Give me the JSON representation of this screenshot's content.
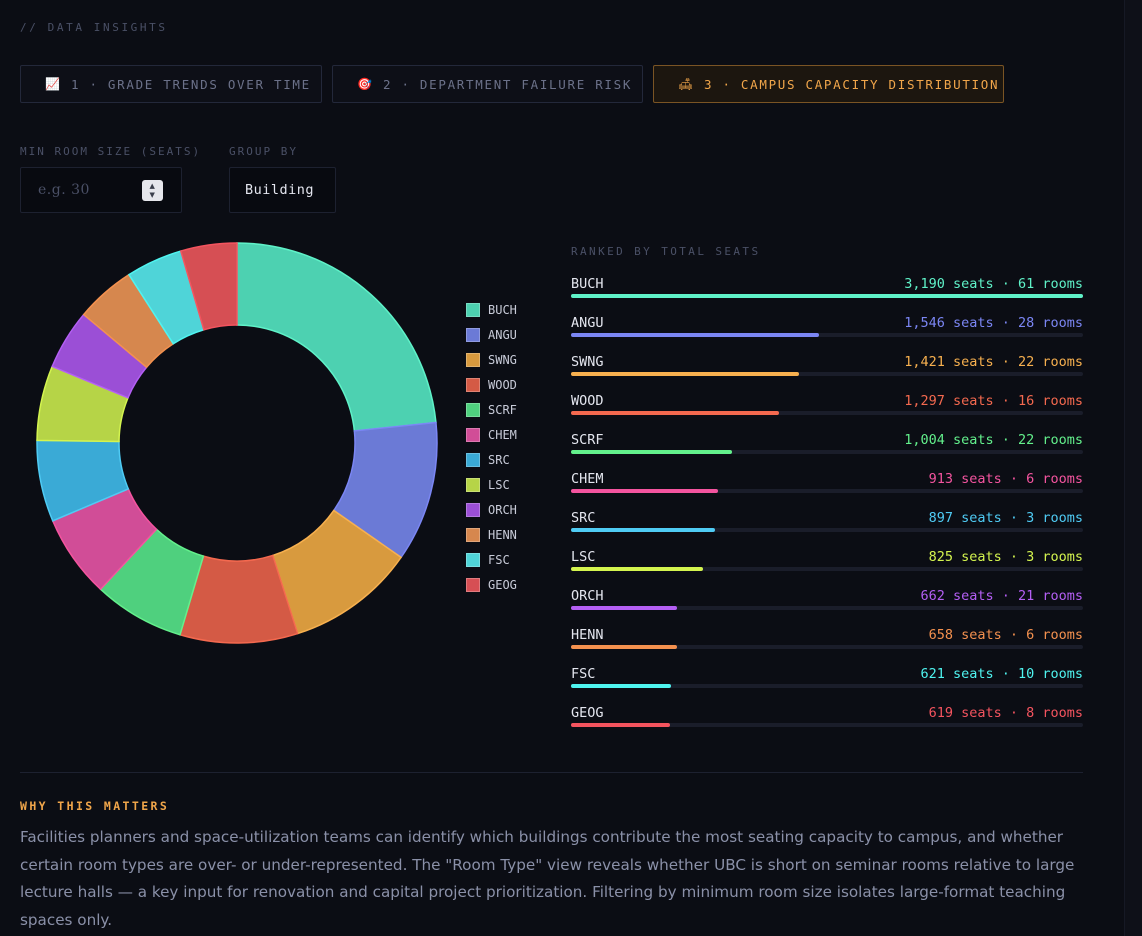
{
  "section_label": "// DATA INSIGHTS",
  "tabs": [
    {
      "icon": "📈",
      "label": "1 · GRADE TRENDS OVER TIME",
      "active": false
    },
    {
      "icon": "🎯",
      "label": "2 · DEPARTMENT FAILURE RISK",
      "active": false
    },
    {
      "icon": "🛋",
      "label": "3 · CAMPUS CAPACITY DISTRIBUTION",
      "active": true
    }
  ],
  "controls": {
    "min_room_label": "MIN ROOM SIZE (SEATS)",
    "min_room_placeholder": "e.g. 30",
    "min_room_value": "",
    "group_by_label": "GROUP BY",
    "group_by_value": "Building"
  },
  "ranked_title": "RANKED BY TOTAL SEATS",
  "chart_data": {
    "type": "pie",
    "variant": "donut",
    "legend_position": "right",
    "categories": [
      "BUCH",
      "ANGU",
      "SWNG",
      "WOOD",
      "SCRF",
      "CHEM",
      "SRC",
      "LSC",
      "ORCH",
      "HENN",
      "FSC",
      "GEOG"
    ],
    "values": [
      3190,
      1546,
      1421,
      1297,
      1004,
      913,
      897,
      825,
      662,
      658,
      621,
      619
    ],
    "rooms": [
      61,
      28,
      22,
      16,
      22,
      6,
      3,
      3,
      21,
      6,
      10,
      8
    ],
    "slice_colors": [
      "#4dd1b1",
      "#6b7ad6",
      "#d89a3e",
      "#d45a45",
      "#4fd07e",
      "#d14d97",
      "#3aaad6",
      "#b6d447",
      "#9b4fd6",
      "#d6874e",
      "#4fd4d8",
      "#d64f54"
    ],
    "bar_colors": [
      "#5ff2c8",
      "#7b86f4",
      "#f7b04f",
      "#f4694f",
      "#63f08c",
      "#f4549f",
      "#4fcbf4",
      "#d4f44f",
      "#b45ff4",
      "#f4914f",
      "#4ff4f0",
      "#f4545f"
    ],
    "value_suffix": " seats",
    "rooms_suffix": " rooms",
    "separator": " · "
  },
  "why": {
    "title": "WHY THIS MATTERS",
    "body": "Facilities planners and space-utilization teams can identify which buildings contribute the most seating capacity to campus, and whether certain room types are over- or under-represented. The \"Room Type\" view reveals whether UBC is short on seminar rooms relative to large lecture halls — a key input for renovation and capital project prioritization. Filtering by minimum room size isolates large-format teaching spaces only."
  }
}
